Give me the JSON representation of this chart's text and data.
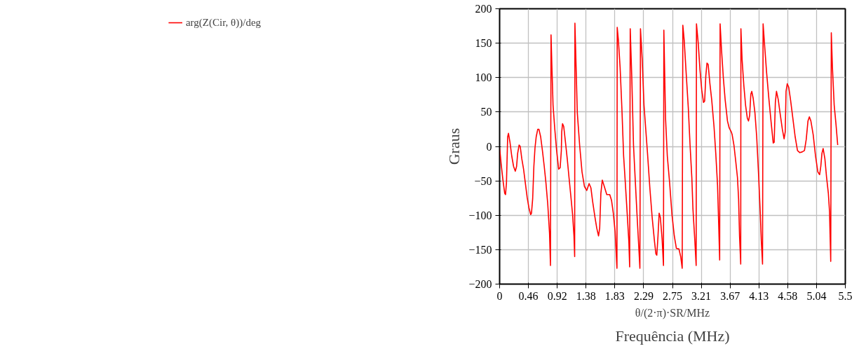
{
  "chart_data": {
    "type": "line",
    "ylabel": "Graus",
    "xlabel": "Frequência (MHz)",
    "annotations": [
      "θ/(2·π)·SR/MHz"
    ],
    "xlim": [
      0,
      5.5
    ],
    "ylim": [
      -200,
      200
    ],
    "xticks": [
      0,
      {
        "value": 0.4583,
        "label": "0.46"
      },
      {
        "value": 0.9167,
        "label": "0.92"
      },
      {
        "value": 1.375,
        "label": "1.38"
      },
      {
        "value": 1.8333,
        "label": "1.83"
      },
      {
        "value": 2.2917,
        "label": "2.29"
      },
      {
        "value": 2.75,
        "label": "2.75"
      },
      {
        "value": 3.2083,
        "label": "3.21"
      },
      {
        "value": 3.6667,
        "label": "3.67"
      },
      {
        "value": 4.125,
        "label": "4.13"
      },
      {
        "value": 4.5833,
        "label": "4.58"
      },
      {
        "value": 5.0417,
        "label": "5.04"
      },
      5.5
    ],
    "yticks": [
      -200,
      -150,
      -100,
      -50,
      0,
      50,
      100,
      150,
      200
    ],
    "grid": true,
    "legend": "left",
    "marker": "none",
    "line_style": "solid",
    "series": [
      {
        "name": "arg(Z(Cir, θ))/deg",
        "color": "#ff0000",
        "x": [
          0,
          0.024,
          0.053,
          0.081,
          0.094,
          0.109,
          0.128,
          0.141,
          0.165,
          0.193,
          0.222,
          0.25,
          0.27,
          0.287,
          0.31,
          0.328,
          0.353,
          0.381,
          0.409,
          0.438,
          0.466,
          0.494,
          0.507,
          0.526,
          0.545,
          0.563,
          0.582,
          0.607,
          0.625,
          0.653,
          0.681,
          0.71,
          0.737,
          0.766,
          0.794,
          0.809,
          0.818,
          0.831,
          0.85,
          0.878,
          0.907,
          0.925,
          0.939,
          0.963,
          0.982,
          0.988,
          1.001,
          1.02,
          1.048,
          1.076,
          1.104,
          1.133,
          1.161,
          1.183,
          1.194,
          1.198,
          1.217,
          1.236,
          1.273,
          1.311,
          1.349,
          1.386,
          1.424,
          1.452,
          1.48,
          1.517,
          1.546,
          1.574,
          1.592,
          1.611,
          1.634,
          1.658,
          1.705,
          1.752,
          1.78,
          1.809,
          1.837,
          1.852,
          1.867,
          1.871,
          1.89,
          1.917,
          1.945,
          1.973,
          2.0,
          2.028,
          2.056,
          2.069,
          2.078,
          2.102,
          2.13,
          2.158,
          2.186,
          2.214,
          2.232,
          2.241,
          2.269,
          2.297,
          2.325,
          2.353,
          2.39,
          2.427,
          2.464,
          2.486,
          2.501,
          2.52,
          2.538,
          2.557,
          2.585,
          2.607,
          2.613,
          2.64,
          2.668,
          2.705,
          2.742,
          2.779,
          2.812,
          2.853,
          2.881,
          2.905,
          2.915,
          2.937,
          2.965,
          3.002,
          3.03,
          3.058,
          3.076,
          3.104,
          3.127,
          3.132,
          3.16,
          3.188,
          3.216,
          3.244,
          3.262,
          3.281,
          3.299,
          3.318,
          3.346,
          3.374,
          3.411,
          3.439,
          3.467,
          3.486,
          3.501,
          3.508,
          3.532,
          3.56,
          3.588,
          3.625,
          3.652,
          3.686,
          3.7,
          3.728,
          3.756,
          3.784,
          3.802,
          3.817,
          3.836,
          3.839,
          3.858,
          3.886,
          3.913,
          3.941,
          3.96,
          3.978,
          3.997,
          4.012,
          4.034,
          4.062,
          4.09,
          4.118,
          4.146,
          4.164,
          4.183,
          4.192,
          4.22,
          4.248,
          4.285,
          4.322,
          4.353,
          4.368,
          4.387,
          4.405,
          4.433,
          4.461,
          4.498,
          4.526,
          4.544,
          4.557,
          4.576,
          4.6,
          4.628,
          4.665,
          4.702,
          4.739,
          4.776,
          4.813,
          4.85,
          4.878,
          4.906,
          4.928,
          4.952,
          4.989,
          5.026,
          5.063,
          5.091,
          5.11,
          5.128,
          5.147,
          5.175,
          5.202,
          5.23,
          5.249,
          5.258,
          5.268,
          5.277,
          5.295,
          5.323,
          5.351,
          5.379
        ],
        "values": [
          -2,
          -25,
          -49,
          -68,
          -70,
          -53,
          14,
          19,
          6,
          -14,
          -29,
          -36,
          -29,
          -10,
          2,
          0,
          -18,
          -33,
          -53,
          -74,
          -89,
          -99,
          -97,
          -76,
          -29,
          -2,
          14,
          25,
          25,
          14,
          -6,
          -29,
          -53,
          -84,
          -126,
          -173,
          162,
          119,
          60,
          25,
          -6,
          -21,
          -33,
          -31,
          -6,
          21,
          33,
          29,
          6,
          -18,
          -45,
          -72,
          -99,
          -130,
          -160,
          179,
          115,
          49,
          2,
          -37,
          -58,
          -64,
          -54,
          -60,
          -80,
          -103,
          -119,
          -130,
          -119,
          -68,
          -49,
          -56,
          -70,
          -70,
          -78,
          -97,
          -123,
          -150,
          -177,
          173,
          154,
          115,
          56,
          -14,
          -53,
          -95,
          -138,
          -175,
          171,
          103,
          2,
          -49,
          -99,
          -146,
          -177,
          171,
          126,
          60,
          25,
          -10,
          -60,
          -103,
          -138,
          -156,
          -158,
          -130,
          -97,
          -103,
          -134,
          -173,
          169,
          41,
          -14,
          -53,
          -99,
          -130,
          -148,
          -149,
          -160,
          -177,
          176,
          154,
          111,
          56,
          2,
          -45,
          -91,
          -134,
          -173,
          178,
          150,
          111,
          82,
          64,
          66,
          103,
          121,
          119,
          91,
          68,
          29,
          -10,
          -56,
          -115,
          -165,
          178,
          138,
          99,
          68,
          37,
          27,
          21,
          17,
          2,
          -21,
          -45,
          -76,
          -130,
          -171,
          171,
          126,
          88,
          60,
          41,
          37,
          45,
          76,
          80,
          70,
          49,
          14,
          -37,
          -95,
          -138,
          -171,
          178,
          142,
          107,
          68,
          33,
          5,
          6,
          64,
          80,
          68,
          49,
          25,
          11,
          21,
          80,
          91,
          86,
          68,
          41,
          14,
          -6,
          -9,
          -8,
          -6,
          10,
          37,
          43,
          37,
          17,
          -14,
          -37,
          -41,
          -29,
          -10,
          -3,
          -18,
          -45,
          -68,
          -95,
          -130,
          -167,
          165,
          115,
          60,
          33,
          2
        ]
      }
    ]
  }
}
